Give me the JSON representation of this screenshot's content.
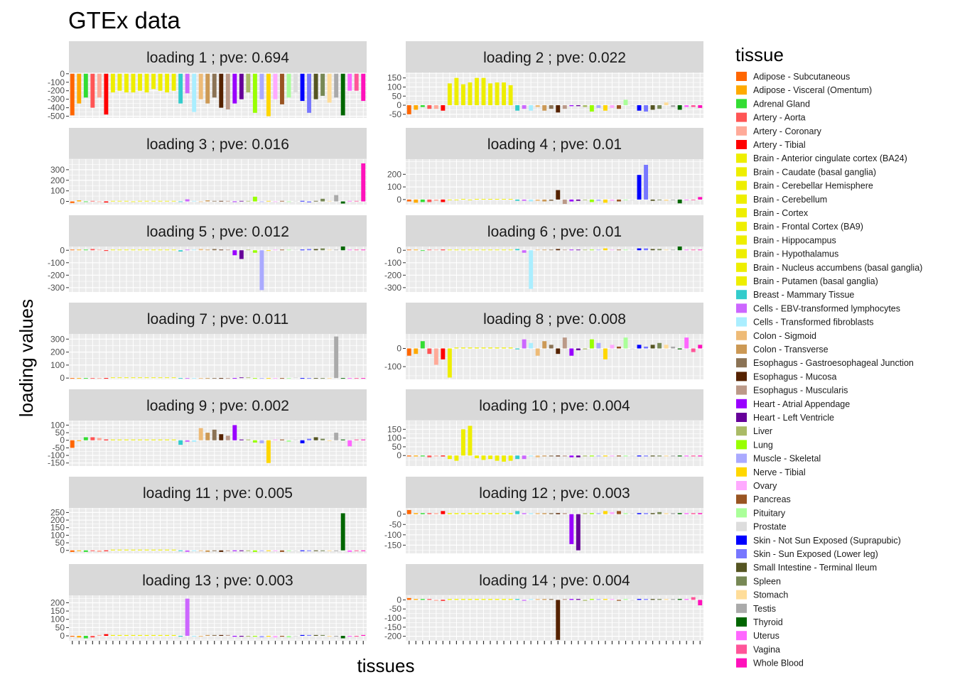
{
  "chart_data": {
    "type": "bar",
    "title": "GTEx data",
    "xlabel": "tissues",
    "ylabel": "loading values",
    "legend_title": "tissue",
    "legend_position": "right",
    "grid": true,
    "tissues": [
      {
        "name": "Adipose - Subcutaneous",
        "color": "#FF6600"
      },
      {
        "name": "Adipose - Visceral (Omentum)",
        "color": "#FFAA00"
      },
      {
        "name": "Adrenal Gland",
        "color": "#33DD33"
      },
      {
        "name": "Artery - Aorta",
        "color": "#FF5555"
      },
      {
        "name": "Artery - Coronary",
        "color": "#FFAA99"
      },
      {
        "name": "Artery - Tibial",
        "color": "#FF0000"
      },
      {
        "name": "Brain - Anterior cingulate cortex (BA24)",
        "color": "#EEEE00"
      },
      {
        "name": "Brain - Caudate (basal ganglia)",
        "color": "#EEEE00"
      },
      {
        "name": "Brain - Cerebellar Hemisphere",
        "color": "#EEEE00"
      },
      {
        "name": "Brain - Cerebellum",
        "color": "#EEEE00"
      },
      {
        "name": "Brain - Cortex",
        "color": "#EEEE00"
      },
      {
        "name": "Brain - Frontal Cortex (BA9)",
        "color": "#EEEE00"
      },
      {
        "name": "Brain - Hippocampus",
        "color": "#EEEE00"
      },
      {
        "name": "Brain - Hypothalamus",
        "color": "#EEEE00"
      },
      {
        "name": "Brain - Nucleus accumbens (basal ganglia)",
        "color": "#EEEE00"
      },
      {
        "name": "Brain - Putamen (basal ganglia)",
        "color": "#EEEE00"
      },
      {
        "name": "Breast - Mammary Tissue",
        "color": "#33CCCC"
      },
      {
        "name": "Cells - EBV-transformed lymphocytes",
        "color": "#CC66FF"
      },
      {
        "name": "Cells - Transformed fibroblasts",
        "color": "#AAEEFF"
      },
      {
        "name": "Colon - Sigmoid",
        "color": "#EEBB77"
      },
      {
        "name": "Colon - Transverse",
        "color": "#CC9955"
      },
      {
        "name": "Esophagus - Gastroesophageal Junction",
        "color": "#8B7355"
      },
      {
        "name": "Esophagus - Mucosa",
        "color": "#552200"
      },
      {
        "name": "Esophagus - Muscularis",
        "color": "#BB9988"
      },
      {
        "name": "Heart - Atrial Appendage",
        "color": "#9900FF"
      },
      {
        "name": "Heart - Left Ventricle",
        "color": "#660099"
      },
      {
        "name": "Liver",
        "color": "#AABB66"
      },
      {
        "name": "Lung",
        "color": "#99FF00"
      },
      {
        "name": "Muscle - Skeletal",
        "color": "#AAAAFF"
      },
      {
        "name": "Nerve - Tibial",
        "color": "#FFD700"
      },
      {
        "name": "Ovary",
        "color": "#FFAAFF"
      },
      {
        "name": "Pancreas",
        "color": "#995522"
      },
      {
        "name": "Pituitary",
        "color": "#AAFF99"
      },
      {
        "name": "Prostate",
        "color": "#DDDDDD"
      },
      {
        "name": "Skin - Not Sun Exposed (Suprapubic)",
        "color": "#0000FF"
      },
      {
        "name": "Skin - Sun Exposed (Lower leg)",
        "color": "#7777FF"
      },
      {
        "name": "Small Intestine - Terminal Ileum",
        "color": "#555522"
      },
      {
        "name": "Spleen",
        "color": "#778855"
      },
      {
        "name": "Stomach",
        "color": "#FFDD99"
      },
      {
        "name": "Testis",
        "color": "#AAAAAA"
      },
      {
        "name": "Thyroid",
        "color": "#006600"
      },
      {
        "name": "Uterus",
        "color": "#FF66FF"
      },
      {
        "name": "Vagina",
        "color": "#FF5599"
      },
      {
        "name": "Whole Blood",
        "color": "#FF11BB"
      }
    ],
    "panels": [
      {
        "label": "loading 1 ; pve: 0.694",
        "ylim": [
          -520,
          15
        ],
        "ticks": [
          0,
          -100,
          -200,
          -300,
          -400,
          -500
        ],
        "values": [
          -490,
          -350,
          -280,
          -400,
          -280,
          -480,
          -220,
          -200,
          -220,
          -220,
          -200,
          -220,
          -180,
          -200,
          -220,
          -200,
          -350,
          -230,
          -450,
          -300,
          -350,
          -280,
          -400,
          -420,
          -350,
          -300,
          -220,
          -460,
          -300,
          -500,
          -300,
          -360,
          -280,
          -220,
          -320,
          -460,
          -300,
          -260,
          -340,
          -280,
          -490,
          -200,
          -200,
          -320
        ]
      },
      {
        "label": "loading 2 ; pve: 0.022",
        "ylim": [
          -70,
          180
        ],
        "ticks": [
          150,
          100,
          50,
          0,
          -50
        ],
        "values": [
          -50,
          -25,
          -10,
          -20,
          -20,
          -30,
          120,
          150,
          115,
          125,
          150,
          150,
          120,
          125,
          125,
          110,
          -30,
          -20,
          -30,
          -10,
          -30,
          -20,
          -40,
          -20,
          -5,
          -5,
          -10,
          -35,
          -15,
          -30,
          -15,
          -20,
          30,
          -5,
          -30,
          -35,
          -25,
          -20,
          15,
          -10,
          -25,
          -10,
          -10,
          -15
        ]
      },
      {
        "label": "loading 3 ; pve: 0.016",
        "ylim": [
          -30,
          400
        ],
        "ticks": [
          300,
          200,
          100,
          0
        ],
        "values": [
          -15,
          10,
          -5,
          5,
          -5,
          -10,
          5,
          5,
          5,
          -5,
          5,
          5,
          5,
          5,
          5,
          5,
          -5,
          20,
          5,
          -5,
          10,
          5,
          5,
          5,
          -5,
          5,
          5,
          45,
          -5,
          5,
          -5,
          5,
          -5,
          5,
          5,
          -10,
          5,
          25,
          5,
          60,
          -20,
          5,
          5,
          360
        ]
      },
      {
        "label": "loading 4 ; pve: 0.01",
        "ylim": [
          -40,
          320
        ],
        "ticks": [
          200,
          100,
          0
        ],
        "values": [
          -15,
          -25,
          -20,
          -20,
          -10,
          -20,
          -5,
          -5,
          5,
          -5,
          5,
          5,
          5,
          5,
          5,
          5,
          -10,
          -10,
          -15,
          -10,
          -15,
          -10,
          75,
          -35,
          -15,
          -10,
          -5,
          -20,
          -10,
          -25,
          -10,
          -15,
          -5,
          -5,
          195,
          275,
          -10,
          -5,
          -10,
          -5,
          -30,
          -5,
          -5,
          20
        ]
      },
      {
        "label": "loading 5 ; pve: 0.012",
        "ylim": [
          -335,
          30
        ],
        "ticks": [
          0,
          -100,
          -200,
          -300
        ],
        "values": [
          5,
          5,
          5,
          10,
          5,
          -5,
          5,
          5,
          5,
          5,
          5,
          5,
          5,
          5,
          5,
          5,
          -10,
          5,
          5,
          10,
          5,
          10,
          5,
          5,
          -40,
          -70,
          5,
          -20,
          -320,
          -5,
          5,
          5,
          5,
          5,
          5,
          10,
          10,
          15,
          5,
          5,
          30,
          5,
          5,
          5
        ]
      },
      {
        "label": "loading 6 ; pve: 0.01",
        "ylim": [
          -335,
          30
        ],
        "ticks": [
          0,
          -100,
          -200,
          -300
        ],
        "values": [
          5,
          5,
          -5,
          5,
          5,
          5,
          5,
          5,
          5,
          5,
          5,
          5,
          5,
          5,
          5,
          5,
          10,
          -20,
          -310,
          5,
          5,
          5,
          10,
          5,
          5,
          5,
          5,
          5,
          5,
          15,
          5,
          5,
          5,
          5,
          15,
          15,
          10,
          10,
          5,
          5,
          30,
          5,
          5,
          5
        ]
      },
      {
        "label": "loading 7 ; pve: 0.011",
        "ylim": [
          -10,
          340
        ],
        "ticks": [
          300,
          200,
          100,
          0
        ],
        "values": [
          -5,
          -5,
          -5,
          -5,
          -5,
          -5,
          5,
          5,
          5,
          5,
          5,
          5,
          5,
          5,
          5,
          5,
          -5,
          -5,
          -5,
          -5,
          -5,
          -5,
          -5,
          -5,
          -5,
          5,
          5,
          -5,
          -5,
          -5,
          -5,
          -5,
          -5,
          5,
          -5,
          -5,
          -5,
          -5,
          -5,
          320,
          -5,
          -5,
          -5,
          -5
        ]
      },
      {
        "label": "loading 8 ; pve: 0.008",
        "ylim": [
          -170,
          80
        ],
        "ticks": [
          0,
          -100
        ],
        "values": [
          -40,
          -30,
          40,
          -30,
          -90,
          -60,
          -160,
          5,
          5,
          5,
          5,
          5,
          5,
          5,
          5,
          5,
          -5,
          50,
          30,
          -40,
          40,
          20,
          -30,
          60,
          -40,
          -10,
          -5,
          50,
          30,
          -60,
          20,
          10,
          60,
          -5,
          20,
          10,
          20,
          30,
          20,
          10,
          -5,
          60,
          -20,
          20
        ]
      },
      {
        "label": "loading 9 ; pve: 0.002",
        "ylim": [
          -170,
          130
        ],
        "ticks": [
          100,
          50,
          0,
          -50,
          -100,
          -150
        ],
        "values": [
          -50,
          -5,
          20,
          20,
          15,
          5,
          5,
          5,
          5,
          5,
          5,
          5,
          5,
          5,
          5,
          5,
          -30,
          -10,
          -10,
          80,
          50,
          70,
          40,
          30,
          100,
          5,
          5,
          -15,
          -20,
          -150,
          5,
          5,
          -10,
          5,
          -20,
          10,
          20,
          10,
          -5,
          50,
          5,
          -40,
          5,
          5
        ]
      },
      {
        "label": "loading 10 ; pve: 0.004",
        "ylim": [
          -60,
          200
        ],
        "ticks": [
          150,
          100,
          50,
          0
        ],
        "values": [
          -5,
          -5,
          -5,
          -10,
          -5,
          -5,
          -20,
          -30,
          150,
          170,
          -15,
          -25,
          -20,
          -30,
          -35,
          -30,
          -20,
          -20,
          -5,
          -10,
          -5,
          -5,
          -5,
          -5,
          -10,
          -10,
          -5,
          -5,
          -5,
          -5,
          -5,
          -5,
          -5,
          -5,
          -5,
          -5,
          -5,
          -5,
          -5,
          -5,
          -5,
          -5,
          -5,
          -5
        ]
      },
      {
        "label": "loading 11 ; pve: 0.005",
        "ylim": [
          -20,
          280
        ],
        "ticks": [
          250,
          200,
          150,
          100,
          50,
          0
        ],
        "values": [
          -10,
          -5,
          -10,
          -5,
          -10,
          -5,
          5,
          5,
          5,
          5,
          5,
          5,
          5,
          5,
          5,
          5,
          -5,
          -10,
          -5,
          -5,
          -10,
          -5,
          -10,
          -5,
          -5,
          -5,
          -5,
          -10,
          -5,
          -5,
          -5,
          -10,
          -5,
          -5,
          -5,
          -5,
          -5,
          -5,
          -5,
          -5,
          245,
          -10,
          -5,
          -5
        ]
      },
      {
        "label": "loading 12 ; pve: 0.003",
        "ylim": [
          -190,
          30
        ],
        "ticks": [
          0,
          -50,
          -100,
          -150
        ],
        "values": [
          20,
          5,
          5,
          5,
          5,
          15,
          5,
          5,
          5,
          5,
          5,
          5,
          5,
          5,
          5,
          5,
          15,
          5,
          5,
          5,
          5,
          5,
          5,
          5,
          -145,
          -175,
          5,
          5,
          5,
          15,
          10,
          15,
          5,
          5,
          5,
          5,
          5,
          10,
          5,
          5,
          5,
          5,
          5,
          5
        ]
      },
      {
        "label": "loading 13 ; pve: 0.003",
        "ylim": [
          -30,
          245
        ],
        "ticks": [
          200,
          150,
          100,
          50,
          0
        ],
        "values": [
          -5,
          -10,
          -15,
          -10,
          5,
          10,
          5,
          5,
          5,
          5,
          5,
          5,
          5,
          5,
          5,
          5,
          -5,
          225,
          -5,
          -5,
          5,
          5,
          5,
          5,
          -5,
          -5,
          -5,
          -5,
          -10,
          -5,
          -10,
          -5,
          -10,
          -5,
          5,
          5,
          5,
          5,
          -5,
          -5,
          -15,
          -5,
          -5,
          5
        ]
      },
      {
        "label": "loading 14 ; pve: 0.004",
        "ylim": [
          -225,
          25
        ],
        "ticks": [
          0,
          -50,
          -100,
          -150,
          -200
        ],
        "values": [
          10,
          5,
          5,
          5,
          -5,
          -5,
          5,
          5,
          5,
          5,
          5,
          5,
          5,
          5,
          5,
          5,
          5,
          -5,
          5,
          5,
          5,
          5,
          -220,
          5,
          5,
          5,
          -5,
          5,
          5,
          5,
          5,
          -5,
          5,
          -5,
          5,
          5,
          5,
          5,
          5,
          5,
          5,
          5,
          15,
          -30
        ]
      }
    ]
  }
}
